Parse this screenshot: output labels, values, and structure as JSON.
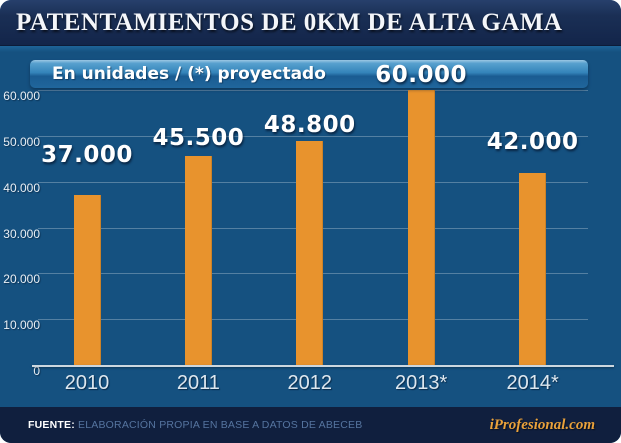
{
  "title": "PATENTAMIENTOS DE 0KM DE ALTA GAMA",
  "subtitle": "En unidades / (*) proyectado",
  "chart_data": {
    "type": "bar",
    "title": "PATENTAMIENTOS DE 0KM DE ALTA GAMA",
    "subtitle": "En unidades / (*) proyectado",
    "categories": [
      "2010",
      "2011",
      "2012",
      "2013*",
      "2014*"
    ],
    "values": [
      37000,
      45500,
      48800,
      60000,
      42000
    ],
    "value_labels": [
      "37.000",
      "45.500",
      "48.800",
      "60.000",
      "42.000"
    ],
    "ylim": [
      0,
      60000
    ],
    "ytick_values": [
      0,
      10000,
      20000,
      30000,
      40000,
      50000,
      60000
    ],
    "ytick_labels": [
      "0",
      "10.000",
      "20.000",
      "30.000",
      "40.000",
      "50.000",
      "60.000"
    ],
    "grid": true,
    "legend": "none",
    "bar_color": "#E8932D",
    "plot_background": "#155180"
  },
  "colors": {
    "title_bar": "#16294D",
    "chart_background": "#155180",
    "bar": "#E8932D",
    "footer_bar": "#101F3E",
    "brand_orange": "#E9A13B",
    "subtitle_strip_top": "#57A0CE",
    "subtitle_strip_bottom": "#1A5C92"
  },
  "footer": {
    "source_label": "FUENTE:",
    "source_text": " ELABORACIÓN PROPIA EN BASE A DATOS DE ABECEB",
    "brand": "iProfesional.com"
  }
}
